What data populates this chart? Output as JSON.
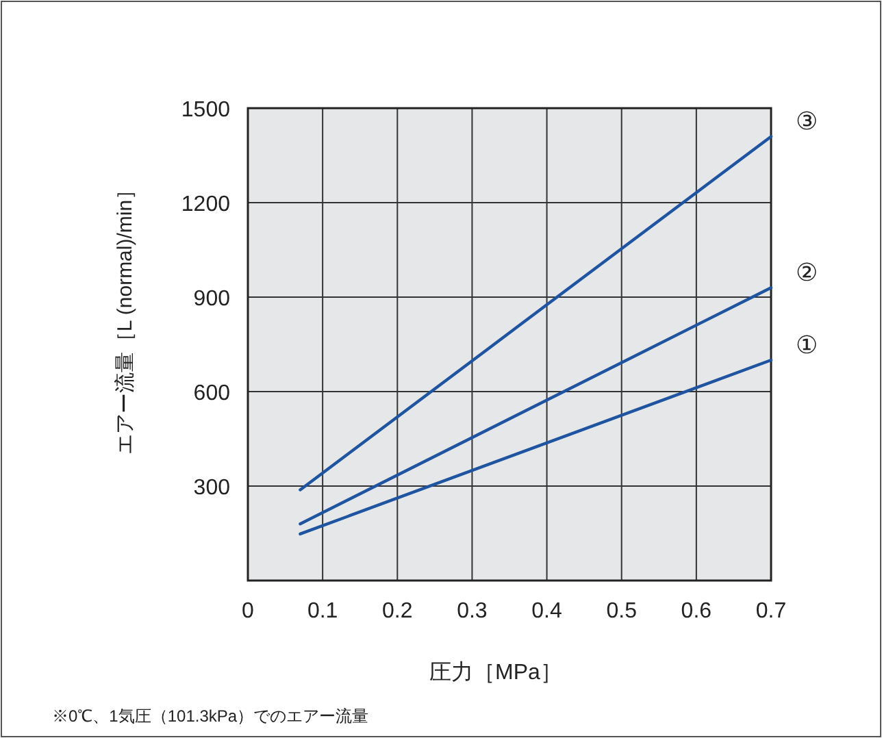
{
  "chart_data": {
    "type": "line",
    "xlabel": "圧力［MPa］",
    "ylabel": "エアー流量［L (normal)/min］",
    "annotations": [
      "※0℃、1気圧（101.3kPa）でのエアー流量"
    ],
    "x": [
      0.07,
      0.7
    ],
    "series": [
      {
        "name": "①",
        "color": "#1f55a0",
        "values": [
          148,
          700
        ]
      },
      {
        "name": "②",
        "color": "#1f55a0",
        "values": [
          180,
          930
        ]
      },
      {
        "name": "③",
        "color": "#1f55a0",
        "values": [
          288,
          1410
        ]
      }
    ],
    "xlim": [
      0,
      0.7
    ],
    "ylim": [
      0,
      1500
    ],
    "xticks": [
      0,
      0.1,
      0.2,
      0.3,
      0.4,
      0.5,
      0.6,
      0.7
    ],
    "yticks": [
      300,
      600,
      900,
      1200,
      1500
    ],
    "grid": true
  }
}
